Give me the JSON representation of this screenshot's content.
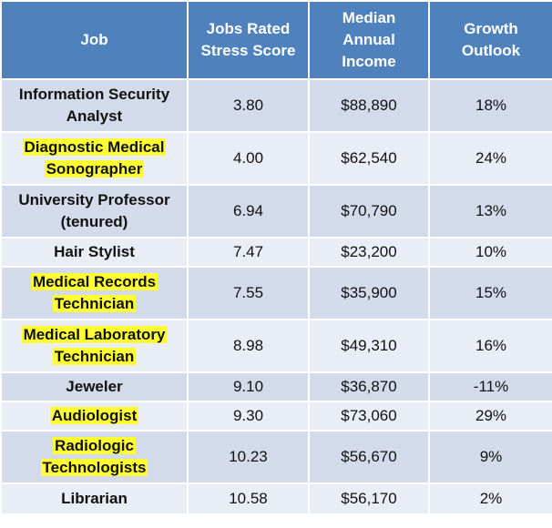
{
  "table": {
    "header": [
      "Job",
      "Jobs Rated Stress Score",
      "Median Annual Income",
      "Growth Outlook"
    ],
    "rows": [
      [
        "Information Security Analyst",
        "3.80",
        "$88,890",
        "18%"
      ],
      [
        "Diagnostic Medical Sonographer",
        "4.00",
        "$62,540",
        "24%"
      ],
      [
        "University Professor (tenured)",
        "6.94",
        "$70,790",
        "13%"
      ],
      [
        "Hair Stylist",
        "7.47",
        "$23,200",
        "10%"
      ],
      [
        "Medical Records Technician",
        "7.55",
        "$35,900",
        "15%"
      ],
      [
        "Medical Laboratory Technician",
        "8.98",
        "$49,310",
        "16%"
      ],
      [
        "Jeweler",
        "9.10",
        "$36,870",
        "-11%"
      ],
      [
        "Audiologist",
        "9.30",
        "$73,060",
        "29%"
      ],
      [
        "Radiologic Technologists",
        "10.23",
        "$56,670",
        "9%"
      ],
      [
        "Librarian",
        "10.58",
        "$56,170",
        "2%"
      ]
    ]
  }
}
